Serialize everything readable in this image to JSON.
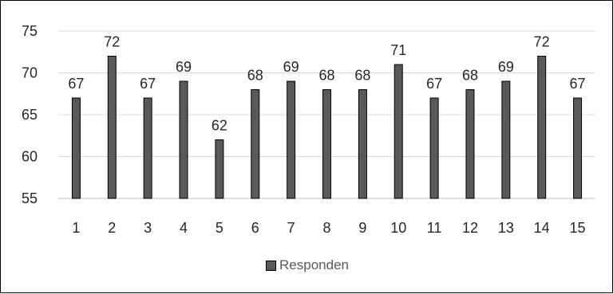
{
  "chart_data": {
    "type": "bar",
    "categories": [
      "1",
      "2",
      "3",
      "4",
      "5",
      "6",
      "7",
      "8",
      "9",
      "10",
      "11",
      "12",
      "13",
      "14",
      "15"
    ],
    "series": [
      {
        "name": "Responden",
        "values": [
          67,
          72,
          67,
          69,
          62,
          68,
          69,
          68,
          68,
          71,
          67,
          68,
          69,
          72,
          67
        ]
      }
    ],
    "ylim": [
      55,
      75
    ],
    "yticks": [
      55,
      60,
      65,
      70,
      75
    ],
    "grid": true,
    "legend": "bottom",
    "bar_color": "#595959",
    "bar_border_color": "#000000",
    "data_labels": true
  }
}
